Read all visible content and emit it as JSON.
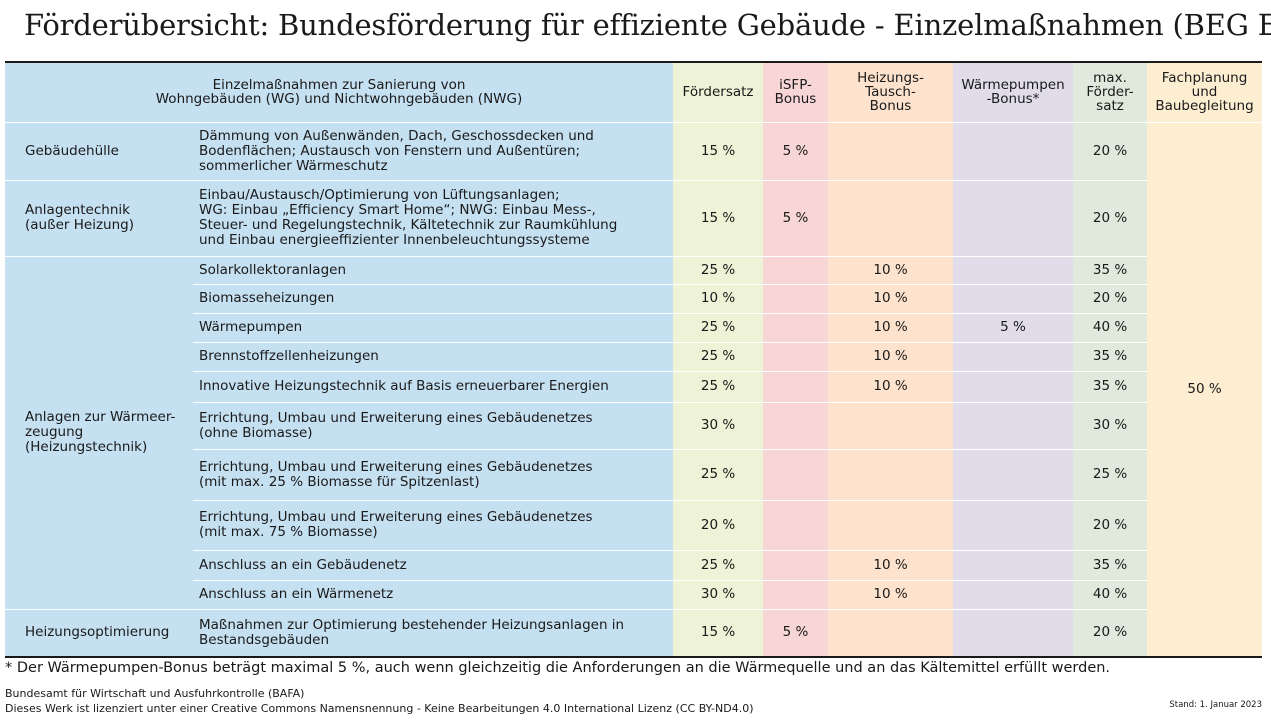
{
  "title": "Förderübersicht: Bundesförderung für effiziente Gebäude - Einzelmaßnahmen (BEG EM)",
  "header": {
    "measures_line1": "Einzelmaßnahmen zur Sanierung von",
    "measures_line2": "Wohngebäuden (WG) und Nichtwohngebäuden (NWG)",
    "foerdersatz": "Fördersatz",
    "isfp_line1": "iSFP-",
    "isfp_line2": "Bonus",
    "tausch_line1": "Heizungs-",
    "tausch_line2": "Tausch-",
    "tausch_line3": "Bonus",
    "wp_line1": "Wärmepumpen",
    "wp_line2": "-Bonus*",
    "max_line1": "max.",
    "max_line2": "Förder-",
    "max_line3": "satz",
    "fach_line1": "Fachplanung",
    "fach_line2": "und",
    "fach_line3": "Baubegleitung"
  },
  "categories": {
    "huelle": "Gebäudehülle",
    "anlagen_line1": "Anlagentechnik",
    "anlagen_line2": "(außer Heizung)",
    "waerme_line1": "Anlagen zur Wärmeer-",
    "waerme_line2": "zeugung",
    "waerme_line3": "(Heizungstechnik)",
    "optimierung": "Heizungsoptimierung"
  },
  "rows": [
    {
      "desc_lines": [
        "Dämmung von Außenwänden, Dach, Geschossdecken und",
        "Bodenflächen; Austausch von Fenstern und Außentüren;",
        "sommerlicher Wärmeschutz"
      ],
      "rate": "15 %",
      "isfp": "5 %",
      "tausch": "",
      "wp": "",
      "max": "20 %"
    },
    {
      "desc_lines": [
        "Einbau/Austausch/Optimierung von Lüftungsanlagen;",
        "WG: Einbau „Efficiency Smart Home“; NWG: Einbau Mess-,",
        "Steuer- und Regelungstechnik, Kältetechnik zur Raumkühlung",
        "und Einbau energieeffizienter Innenbeleuchtungssysteme"
      ],
      "rate": "15 %",
      "isfp": "5 %",
      "tausch": "",
      "wp": "",
      "max": "20 %"
    },
    {
      "desc_lines": [
        "Solarkollektoranlagen"
      ],
      "rate": "25 %",
      "isfp": "",
      "tausch": "10 %",
      "wp": "",
      "max": "35 %"
    },
    {
      "desc_lines": [
        "Biomasseheizungen"
      ],
      "rate": "10 %",
      "isfp": "",
      "tausch": "10 %",
      "wp": "",
      "max": "20 %"
    },
    {
      "desc_lines": [
        "Wärmepumpen"
      ],
      "rate": "25 %",
      "isfp": "",
      "tausch": "10 %",
      "wp": "5 %",
      "max": "40 %"
    },
    {
      "desc_lines": [
        "Brennstoffzellenheizungen"
      ],
      "rate": "25 %",
      "isfp": "",
      "tausch": "10 %",
      "wp": "",
      "max": "35 %"
    },
    {
      "desc_lines": [
        "Innovative Heizungstechnik auf Basis erneuerbarer Energien"
      ],
      "rate": "25 %",
      "isfp": "",
      "tausch": "10 %",
      "wp": "",
      "max": "35 %"
    },
    {
      "desc_lines": [
        "Errichtung, Umbau und Erweiterung eines Gebäudenetzes",
        "(ohne Biomasse)"
      ],
      "rate": "30 %",
      "isfp": "",
      "tausch": "",
      "wp": "",
      "max": "30 %"
    },
    {
      "desc_lines": [
        "Errichtung, Umbau und Erweiterung eines Gebäudenetzes",
        "(mit max. 25 % Biomasse für Spitzenlast)"
      ],
      "rate": "25 %",
      "isfp": "",
      "tausch": "",
      "wp": "",
      "max": "25 %"
    },
    {
      "desc_lines": [
        "Errichtung, Umbau und Erweiterung eines Gebäudenetzes",
        "(mit max. 75 % Biomasse)"
      ],
      "rate": "20 %",
      "isfp": "",
      "tausch": "",
      "wp": "",
      "max": "20 %"
    },
    {
      "desc_lines": [
        "Anschluss an ein Gebäudenetz"
      ],
      "rate": "25 %",
      "isfp": "",
      "tausch": "10 %",
      "wp": "",
      "max": "35 %"
    },
    {
      "desc_lines": [
        "Anschluss an ein Wärmenetz"
      ],
      "rate": "30 %",
      "isfp": "",
      "tausch": "10 %",
      "wp": "",
      "max": "40 %"
    },
    {
      "desc_lines": [
        "Maßnahmen zur Optimierung bestehender Heizungsanlagen in",
        "Bestandsgebäuden"
      ],
      "rate": "15 %",
      "isfp": "5 %",
      "tausch": "",
      "wp": "",
      "max": "20 %"
    }
  ],
  "fachplanung_value": "50 %",
  "footnote": "* Der Wärmepumpen-Bonus beträgt maximal 5 %, auch wenn gleichzeitig die Anforderungen an die Wärmequelle und an das Kältemittel erfüllt werden.",
  "source_line1": "Bundesamt für Wirtschaft und Ausfuhrkontrolle (BAFA)",
  "source_line2": "Dieses Werk ist lizenziert unter einer Creative Commons Namensnennung - Keine Bearbeitungen 4.0 International Lizenz (CC BY-ND4.0)",
  "stand": "Stand: 1. Januar 2023",
  "colors": {
    "blue": "#c5e0f1",
    "green_light": "#eef2d6",
    "pink": "#f8d6d6",
    "orange": "#fde3cd",
    "lilac": "#e1dcea",
    "green": "#dfe9dc",
    "cream": "#fdeed2"
  }
}
